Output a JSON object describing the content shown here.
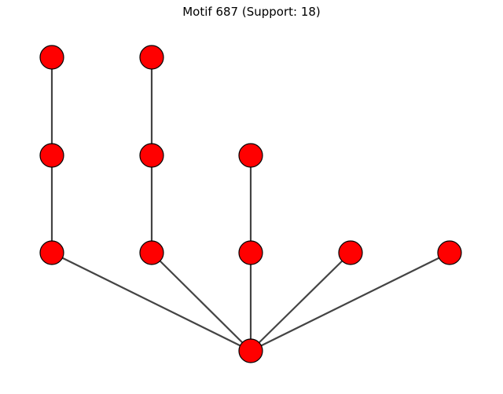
{
  "figure": {
    "title": "Motif 687 (Support: 18)"
  },
  "graph": {
    "node_color": "#ff0000",
    "node_border_color": "#000000",
    "edge_color": "#444444",
    "nodes": [
      "n1",
      "n2",
      "n3",
      "n4",
      "n5",
      "n6",
      "n7",
      "n8",
      "n9",
      "n10",
      "n11"
    ],
    "edges": [
      [
        "n1",
        "n3"
      ],
      [
        "n3",
        "n6"
      ],
      [
        "n2",
        "n4"
      ],
      [
        "n4",
        "n7"
      ],
      [
        "n5",
        "n8"
      ],
      [
        "n6",
        "n11"
      ],
      [
        "n7",
        "n11"
      ],
      [
        "n8",
        "n11"
      ],
      [
        "n9",
        "n11"
      ],
      [
        "n10",
        "n11"
      ]
    ]
  }
}
